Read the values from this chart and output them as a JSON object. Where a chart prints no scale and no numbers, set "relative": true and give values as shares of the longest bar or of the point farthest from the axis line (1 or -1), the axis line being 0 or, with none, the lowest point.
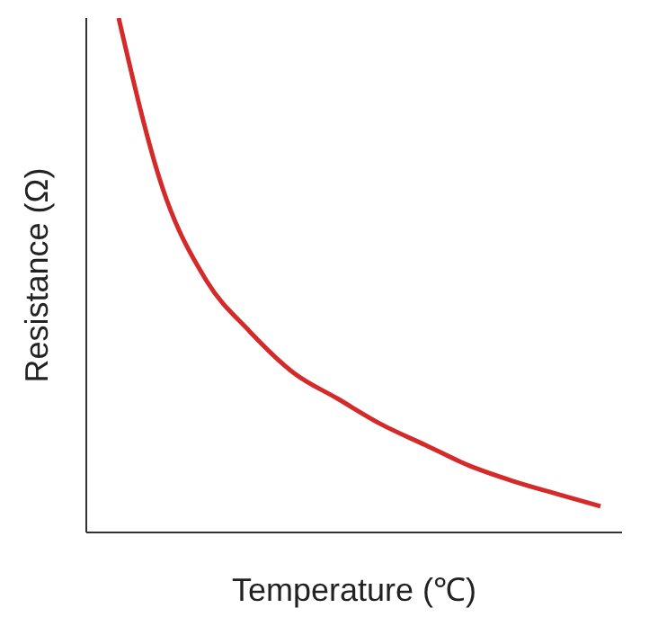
{
  "chart_data": {
    "type": "line",
    "relative": true,
    "xlabel": "Temperature (℃)",
    "ylabel": "Resistance (Ω)",
    "categories": [
      null,
      null,
      null,
      null,
      null,
      null,
      null,
      null,
      null,
      null,
      null,
      null
    ],
    "series": [
      {
        "color": "#d42a2a",
        "values": [
          1,
          0.67,
          0.49,
          0.39,
          0.31,
          0.26,
          0.21,
          0.17,
          0.13,
          0.1,
          0.075,
          0.051
        ]
      }
    ],
    "grid": false,
    "legend": false,
    "marker": "none",
    "line_style": "solid"
  }
}
